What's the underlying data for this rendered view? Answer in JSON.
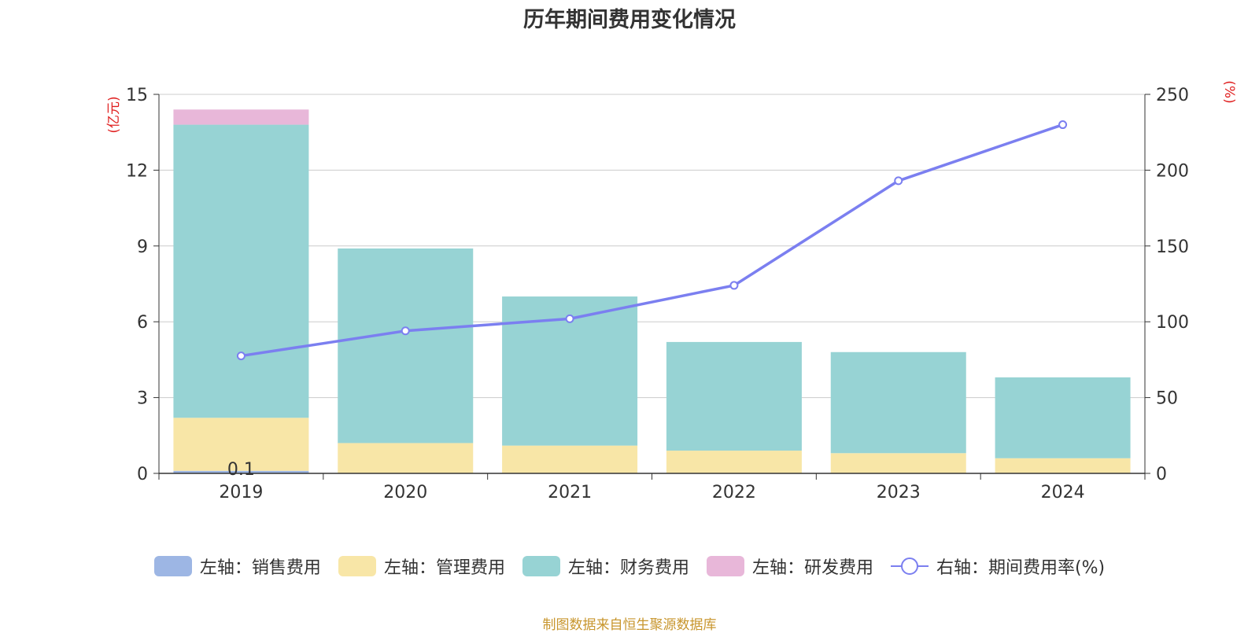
{
  "colors": {
    "sales": "#9db6e4",
    "admin": "#f8e6a7",
    "finance": "#97d3d4",
    "rnd": "#e8b7d9",
    "rate": "#7b7ff0",
    "axis_unit": "#e02020",
    "source": "#c8962e",
    "grid": "#cccccc"
  },
  "legend": {
    "sales": "左轴：销售费用",
    "admin": "左轴：管理费用",
    "finance": "左轴：财务费用",
    "rnd": "左轴：研发费用",
    "rate": "右轴：期间费用率(%)"
  },
  "source": "制图数据来自恒生聚源数据库",
  "chart_data": {
    "type": "bar",
    "title": "历年期间费用变化情况",
    "categories": [
      "2019",
      "2020",
      "2021",
      "2022",
      "2023",
      "2024"
    ],
    "series": [
      {
        "name": "左轴：销售费用",
        "key": "sales",
        "axis": "left",
        "values": [
          0.1,
          0.0,
          0.0,
          0.0,
          0.0,
          0.0
        ]
      },
      {
        "name": "左轴：管理费用",
        "key": "admin",
        "axis": "left",
        "values": [
          2.1,
          1.2,
          1.1,
          0.9,
          0.8,
          0.6
        ]
      },
      {
        "name": "左轴：财务费用",
        "key": "finance",
        "axis": "left",
        "values": [
          11.6,
          7.7,
          5.9,
          4.3,
          4.0,
          3.2
        ]
      },
      {
        "name": "左轴：研发费用",
        "key": "rnd",
        "axis": "left",
        "values": [
          0.6,
          0.0,
          0.0,
          0.0,
          0.0,
          0.0
        ]
      },
      {
        "name": "右轴：期间费用率(%)",
        "key": "rate",
        "type": "line",
        "axis": "right",
        "values": [
          77.5,
          94,
          102,
          124,
          193,
          230
        ]
      }
    ],
    "data_labels": [
      {
        "category": "2019",
        "series": "左轴：销售费用",
        "text": "0.1"
      }
    ],
    "y_left": {
      "label": "(亿元)",
      "ylim": [
        0,
        15
      ],
      "ticks": [
        0,
        3,
        6,
        9,
        12,
        15
      ]
    },
    "y_right": {
      "label": "(%)",
      "ylim": [
        0,
        250
      ],
      "ticks": [
        0,
        50,
        100,
        150,
        200,
        250
      ]
    },
    "grid": true,
    "legend_position": "bottom"
  }
}
